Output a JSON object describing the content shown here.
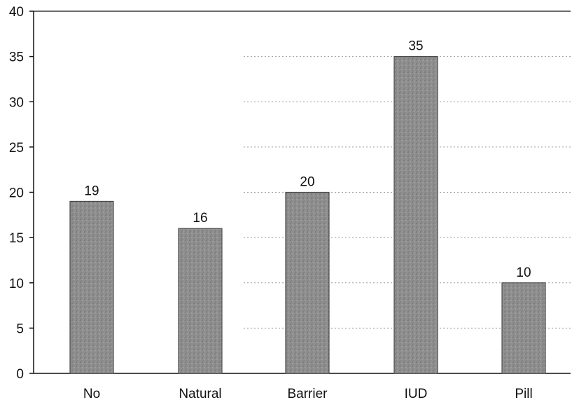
{
  "chart_data": {
    "type": "bar",
    "categories": [
      "No",
      "Natural",
      "Barrier",
      "IUD",
      "Pill"
    ],
    "values": [
      19,
      16,
      20,
      35,
      10
    ],
    "data_labels": [
      "19",
      "16",
      "20",
      "35",
      "10"
    ],
    "title": "",
    "xlabel": "",
    "ylabel": "",
    "ylim": [
      0,
      40
    ],
    "yticks": [
      "0",
      "5",
      "10",
      "15",
      "20",
      "25",
      "30",
      "35",
      "40"
    ],
    "grid": true,
    "legend": "none",
    "colors": {
      "bar_fill": "#8c8c8c",
      "bar_stroke": "#4a4a4a",
      "axis": "#111111",
      "grid": "#9a9a9a"
    }
  }
}
